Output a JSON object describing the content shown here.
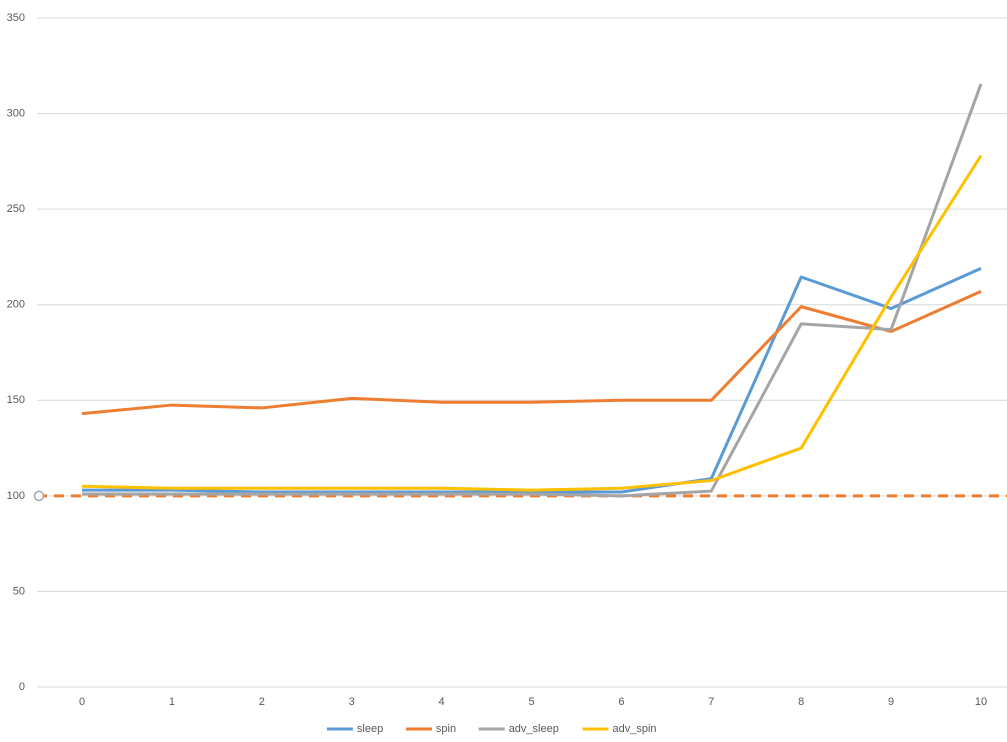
{
  "chart_data": {
    "type": "line",
    "categories": [
      "0",
      "1",
      "2",
      "3",
      "4",
      "5",
      "6",
      "7",
      "8",
      "9",
      "10"
    ],
    "series": [
      {
        "name": "sleep",
        "color": "#5b9bd5",
        "values": [
          103,
          103,
          102,
          102,
          102,
          102,
          102,
          109,
          214.5,
          198,
          219
        ]
      },
      {
        "name": "spin",
        "color": "#ed7d31",
        "values": [
          143,
          147.5,
          146,
          151,
          149,
          149,
          150,
          150,
          199,
          186,
          207
        ]
      },
      {
        "name": "adv_sleep",
        "color": "#a5a5a5",
        "values": [
          101,
          101,
          101,
          101,
          101,
          101,
          100,
          102.5,
          190,
          187,
          315.5
        ]
      },
      {
        "name": "adv_spin",
        "color": "#ffc000",
        "values": [
          105,
          104,
          104,
          104,
          104,
          103,
          104,
          108,
          125,
          204,
          278
        ]
      }
    ],
    "reference_line": {
      "value": 100,
      "color": "#ed7d31"
    },
    "ylim": [
      0,
      350
    ],
    "yticks": [
      0,
      50,
      100,
      150,
      200,
      250,
      300,
      350
    ],
    "grid": true,
    "legend": "bottom"
  }
}
